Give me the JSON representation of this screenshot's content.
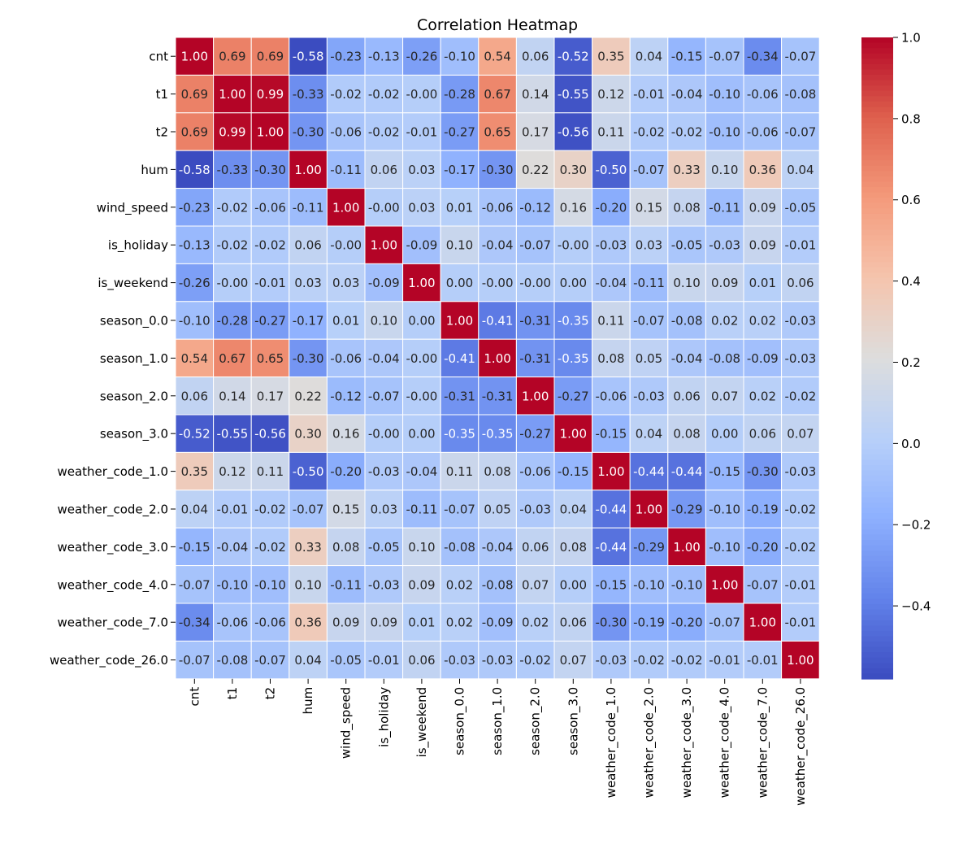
{
  "chart_data": {
    "type": "heatmap",
    "title": "Correlation Heatmap",
    "colormap": "coolwarm",
    "grid": true,
    "legend": "colorbar-right",
    "labels": [
      "cnt",
      "t1",
      "t2",
      "hum",
      "wind_speed",
      "is_holiday",
      "is_weekend",
      "season_0.0",
      "season_1.0",
      "season_2.0",
      "season_3.0",
      "weather_code_1.0",
      "weather_code_2.0",
      "weather_code_3.0",
      "weather_code_4.0",
      "weather_code_7.0",
      "weather_code_26.0"
    ],
    "display_values": [
      [
        "1.00",
        "0.69",
        "0.69",
        "-0.58",
        "-0.23",
        "-0.13",
        "-0.26",
        "-0.10",
        "0.54",
        "0.06",
        "-0.52",
        "0.35",
        "0.04",
        "-0.15",
        "-0.07",
        "-0.34",
        "-0.07"
      ],
      [
        "0.69",
        "1.00",
        "0.99",
        "-0.33",
        "-0.02",
        "-0.02",
        "-0.00",
        "-0.28",
        "0.67",
        "0.14",
        "-0.55",
        "0.12",
        "-0.01",
        "-0.04",
        "-0.10",
        "-0.06",
        "-0.08"
      ],
      [
        "0.69",
        "0.99",
        "1.00",
        "-0.30",
        "-0.06",
        "-0.02",
        "-0.01",
        "-0.27",
        "0.65",
        "0.17",
        "-0.56",
        "0.11",
        "-0.02",
        "-0.02",
        "-0.10",
        "-0.06",
        "-0.07"
      ],
      [
        "-0.58",
        "-0.33",
        "-0.30",
        "1.00",
        "-0.11",
        "0.06",
        "0.03",
        "-0.17",
        "-0.30",
        "0.22",
        "0.30",
        "-0.50",
        "-0.07",
        "0.33",
        "0.10",
        "0.36",
        "0.04"
      ],
      [
        "-0.23",
        "-0.02",
        "-0.06",
        "-0.11",
        "1.00",
        "-0.00",
        "0.03",
        "0.01",
        "-0.06",
        "-0.12",
        "0.16",
        "-0.20",
        "0.15",
        "0.08",
        "-0.11",
        "0.09",
        "-0.05"
      ],
      [
        "-0.13",
        "-0.02",
        "-0.02",
        "0.06",
        "-0.00",
        "1.00",
        "-0.09",
        "0.10",
        "-0.04",
        "-0.07",
        "-0.00",
        "-0.03",
        "0.03",
        "-0.05",
        "-0.03",
        "0.09",
        "-0.01"
      ],
      [
        "-0.26",
        "-0.00",
        "-0.01",
        "0.03",
        "0.03",
        "-0.09",
        "1.00",
        "0.00",
        "-0.00",
        "-0.00",
        "0.00",
        "-0.04",
        "-0.11",
        "0.10",
        "0.09",
        "0.01",
        "0.06"
      ],
      [
        "-0.10",
        "-0.28",
        "-0.27",
        "-0.17",
        "0.01",
        "0.10",
        "0.00",
        "1.00",
        "-0.41",
        "-0.31",
        "-0.35",
        "0.11",
        "-0.07",
        "-0.08",
        "0.02",
        "0.02",
        "-0.03"
      ],
      [
        "0.54",
        "0.67",
        "0.65",
        "-0.30",
        "-0.06",
        "-0.04",
        "-0.00",
        "-0.41",
        "1.00",
        "-0.31",
        "-0.35",
        "0.08",
        "0.05",
        "-0.04",
        "-0.08",
        "-0.09",
        "-0.03"
      ],
      [
        "0.06",
        "0.14",
        "0.17",
        "0.22",
        "-0.12",
        "-0.07",
        "-0.00",
        "-0.31",
        "-0.31",
        "1.00",
        "-0.27",
        "-0.06",
        "-0.03",
        "0.06",
        "0.07",
        "0.02",
        "-0.02"
      ],
      [
        "-0.52",
        "-0.55",
        "-0.56",
        "0.30",
        "0.16",
        "-0.00",
        "0.00",
        "-0.35",
        "-0.35",
        "-0.27",
        "1.00",
        "-0.15",
        "0.04",
        "0.08",
        "0.00",
        "0.06",
        "0.07"
      ],
      [
        "0.35",
        "0.12",
        "0.11",
        "-0.50",
        "-0.20",
        "-0.03",
        "-0.04",
        "0.11",
        "0.08",
        "-0.06",
        "-0.15",
        "1.00",
        "-0.44",
        "-0.44",
        "-0.15",
        "-0.30",
        "-0.03"
      ],
      [
        "0.04",
        "-0.01",
        "-0.02",
        "-0.07",
        "0.15",
        "0.03",
        "-0.11",
        "-0.07",
        "0.05",
        "-0.03",
        "0.04",
        "-0.44",
        "1.00",
        "-0.29",
        "-0.10",
        "-0.19",
        "-0.02"
      ],
      [
        "-0.15",
        "-0.04",
        "-0.02",
        "0.33",
        "0.08",
        "-0.05",
        "0.10",
        "-0.08",
        "-0.04",
        "0.06",
        "0.08",
        "-0.44",
        "-0.29",
        "1.00",
        "-0.10",
        "-0.20",
        "-0.02"
      ],
      [
        "-0.07",
        "-0.10",
        "-0.10",
        "0.10",
        "-0.11",
        "-0.03",
        "0.09",
        "0.02",
        "-0.08",
        "0.07",
        "0.00",
        "-0.15",
        "-0.10",
        "-0.10",
        "1.00",
        "-0.07",
        "-0.01"
      ],
      [
        "-0.34",
        "-0.06",
        "-0.06",
        "0.36",
        "0.09",
        "0.09",
        "0.01",
        "0.02",
        "-0.09",
        "0.02",
        "0.06",
        "-0.30",
        "-0.19",
        "-0.20",
        "-0.07",
        "1.00",
        "-0.01"
      ],
      [
        "-0.07",
        "-0.08",
        "-0.07",
        "0.04",
        "-0.05",
        "-0.01",
        "0.06",
        "-0.03",
        "-0.03",
        "-0.02",
        "0.07",
        "-0.03",
        "-0.02",
        "-0.02",
        "-0.01",
        "-0.01",
        "1.00"
      ]
    ],
    "color_range": [
      -0.58,
      1.0
    ],
    "colorbar_ticks": [
      "1.0",
      "0.8",
      "0.6",
      "0.4",
      "0.2",
      "0.0",
      "−0.2",
      "−0.4"
    ],
    "colorbar_tick_values": [
      1.0,
      0.8,
      0.6,
      0.4,
      0.2,
      0.0,
      -0.2,
      -0.4
    ]
  }
}
